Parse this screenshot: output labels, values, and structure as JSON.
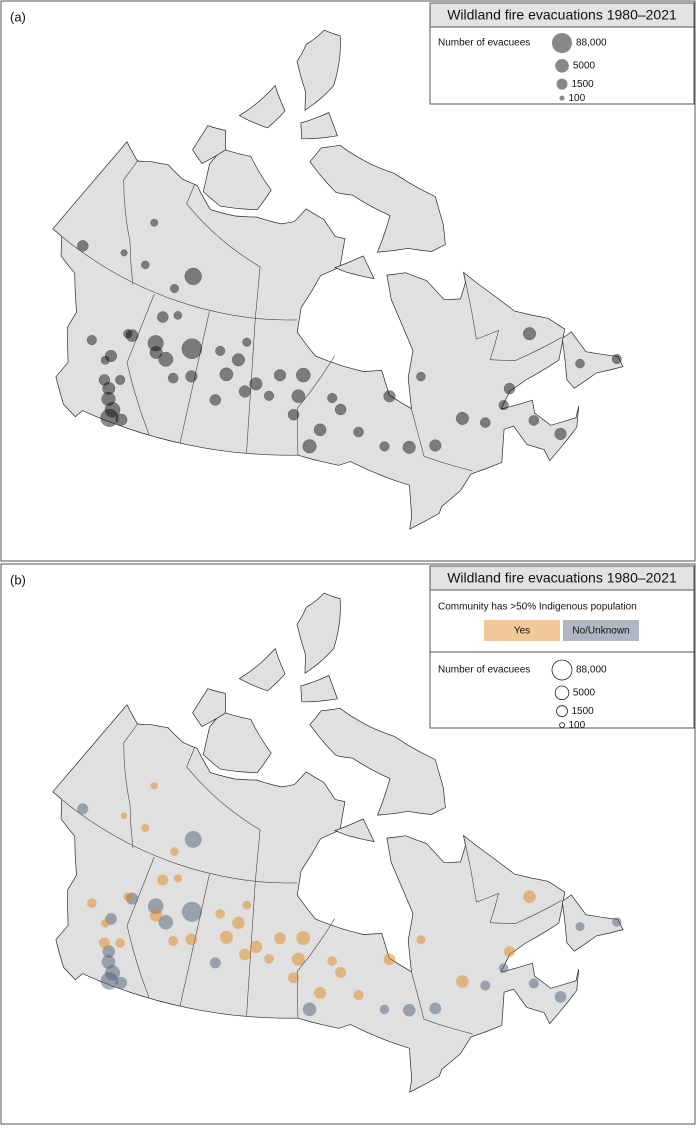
{
  "chart_data": {
    "type": "bubble-map",
    "points": {
      "lon": [
        -120.5,
        -121,
        -119.5,
        -122,
        -120,
        -118,
        -119.5,
        -123,
        -122.5,
        -126,
        -121.5,
        -120.8,
        -111.4,
        -117.3,
        -114.8,
        -116.5,
        -113,
        -117,
        -110.5,
        -115,
        -105.5,
        -102.5,
        -107,
        -104,
        -106.5,
        -103,
        -97.5,
        -94.8,
        -95.5,
        -99,
        -101,
        -94,
        -92,
        -89,
        -93.5,
        -84,
        -87,
        -81,
        -82,
        -90,
        -77.8,
        -71,
        -73.5,
        -68,
        -77,
        -66.4,
        -63.5,
        -65.5,
        -60.4,
        -53,
        -57,
        -135,
        -114.4,
        -117,
        -123.5,
        -125.5,
        -128
      ],
      "lat": [
        50.7,
        51.5,
        50,
        52,
        52.5,
        49.5,
        49.3,
        53.5,
        54,
        54.5,
        56.2,
        56.2,
        56.7,
        58.5,
        55.3,
        55.6,
        54,
        56.3,
        54.5,
        59,
        55.2,
        54,
        57,
        56.5,
        53,
        58,
        55.5,
        53.8,
        52.3,
        53.8,
        54.7,
        55.5,
        51,
        52.5,
        49.7,
        49,
        50.5,
        48.5,
        52.9,
        53.5,
        48.1,
        48.5,
        49.5,
        49.2,
        53.8,
        50.2,
        45,
        47,
        53.3,
        47.5,
        49,
        60.7,
        62.4,
        61,
        61.9,
        65.3,
        62
      ],
      "evacuees": [
        5000,
        3000,
        10000,
        1500,
        800,
        2000,
        30000,
        500,
        2000,
        800,
        600,
        2500,
        88000,
        1500,
        7000,
        3000,
        1000,
        12000,
        2000,
        400,
        4000,
        2000,
        800,
        3000,
        1500,
        500,
        2000,
        4000,
        1500,
        800,
        3000,
        6000,
        2500,
        1500,
        5000,
        800,
        1000,
        3000,
        2000,
        800,
        2000,
        1000,
        3000,
        800,
        600,
        1500,
        2000,
        1000,
        3000,
        800,
        600,
        1500,
        20000,
        500,
        400,
        300,
        200
      ],
      "indigenous": [
        false,
        false,
        false,
        true,
        true,
        false,
        false,
        true,
        false,
        true,
        true,
        false,
        false,
        true,
        false,
        true,
        true,
        false,
        true,
        true,
        true,
        true,
        true,
        true,
        false,
        true,
        true,
        true,
        true,
        true,
        true,
        true,
        true,
        true,
        false,
        false,
        true,
        false,
        true,
        true,
        false,
        false,
        true,
        false,
        true,
        true,
        false,
        false,
        true,
        false,
        false,
        false,
        false,
        true,
        true,
        true,
        true
      ]
    },
    "panels": [
      {
        "label": "(a)",
        "title": "Wildland fire evacuations 1980–2021",
        "size_legend": {
          "title": "Number of evacuees",
          "sizes": [
            {
              "value": 88000,
              "label": "88,000"
            },
            5000,
            1500,
            100
          ]
        }
      },
      {
        "label": "(b)",
        "title": "Wildland fire evacuations 1980–2021",
        "color_legend": {
          "title": "Community has >50% Indigenous population",
          "categories": [
            {
              "name": "Yes",
              "color": "#e0871c"
            },
            {
              "name": "No/Unknown",
              "color": "#4f5f78"
            }
          ]
        },
        "size_legend": {
          "title": "Number of evacuees",
          "sizes": [
            {
              "value": 88000,
              "label": "88,000"
            },
            5000,
            1500,
            100
          ]
        }
      }
    ]
  }
}
